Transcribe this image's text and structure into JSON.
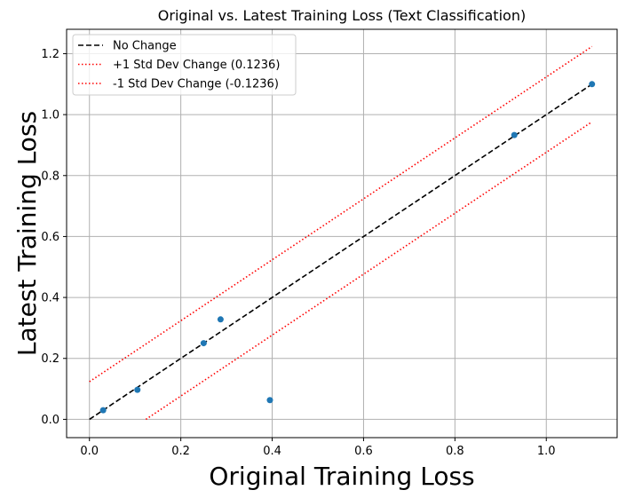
{
  "chart_data": {
    "type": "scatter",
    "title": "Original vs. Latest Training Loss (Text Classification)",
    "xlabel": "Original Training Loss",
    "ylabel": "Latest Training Loss",
    "xlim": [
      -0.05,
      1.155
    ],
    "ylim": [
      -0.06,
      1.28
    ],
    "xticks": [
      "0.0",
      "0.2",
      "0.4",
      "0.6",
      "0.8",
      "1.0"
    ],
    "yticks": [
      "0.0",
      "0.2",
      "0.4",
      "0.6",
      "0.8",
      "1.0",
      "1.2"
    ],
    "grid": true,
    "legend_position": "top-left",
    "points": [
      {
        "x": 0.03,
        "y": 0.03
      },
      {
        "x": 0.105,
        "y": 0.097
      },
      {
        "x": 0.25,
        "y": 0.25
      },
      {
        "x": 0.287,
        "y": 0.328
      },
      {
        "x": 0.395,
        "y": 0.063
      },
      {
        "x": 0.93,
        "y": 0.933
      },
      {
        "x": 1.1,
        "y": 1.1
      }
    ],
    "point_color": "#1f77b4",
    "lines": [
      {
        "name": "No Change",
        "offset": 0,
        "x_range": [
          0,
          1.1
        ],
        "color": "#000000",
        "style": "dashed"
      },
      {
        "name": "+1 Std Dev Change (0.1236)",
        "offset": 0.1236,
        "x_range": [
          0,
          1.1
        ],
        "color": "#ff0000",
        "style": "dotted"
      },
      {
        "name": "-1 Std Dev Change (-0.1236)",
        "offset": -0.1236,
        "x_range": [
          0.1236,
          1.1
        ],
        "color": "#ff0000",
        "style": "dotted"
      }
    ]
  }
}
